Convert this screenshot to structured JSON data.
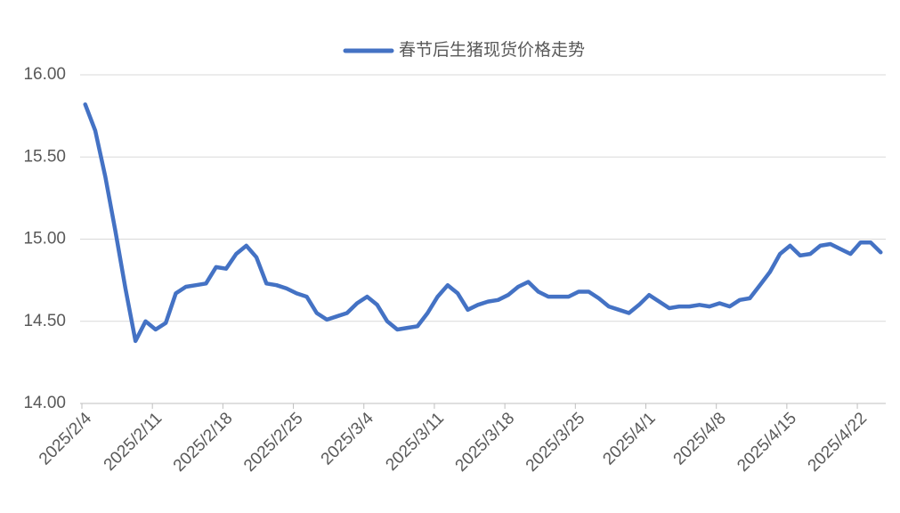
{
  "chart_data": {
    "type": "line",
    "legend": "春节后生猪现货价格走势",
    "series": [
      {
        "name": "春节后生猪现货价格走势",
        "color": "#4472c4",
        "values": [
          15.82,
          15.66,
          15.38,
          15.05,
          14.7,
          14.38,
          14.5,
          14.45,
          14.49,
          14.67,
          14.71,
          14.72,
          14.73,
          14.83,
          14.82,
          14.91,
          14.96,
          14.89,
          14.73,
          14.72,
          14.7,
          14.67,
          14.65,
          14.55,
          14.51,
          14.53,
          14.55,
          14.61,
          14.65,
          14.6,
          14.5,
          14.45,
          14.46,
          14.47,
          14.55,
          14.65,
          14.72,
          14.67,
          14.57,
          14.6,
          14.62,
          14.63,
          14.66,
          14.71,
          14.74,
          14.68,
          14.65,
          14.65,
          14.65,
          14.68,
          14.68,
          14.64,
          14.59,
          14.57,
          14.55,
          14.6,
          14.66,
          14.62,
          14.58,
          14.59,
          14.59,
          14.6,
          14.59,
          14.61,
          14.59,
          14.63,
          14.64,
          14.72,
          14.8,
          14.91,
          14.96,
          14.9,
          14.91,
          14.96,
          14.97,
          14.94,
          14.91,
          14.98,
          14.98,
          14.92
        ]
      }
    ],
    "categories": [
      "2025/2/4",
      null,
      null,
      null,
      null,
      null,
      null,
      "2025/2/11",
      null,
      null,
      null,
      null,
      null,
      null,
      "2025/2/18",
      null,
      null,
      null,
      null,
      null,
      null,
      "2025/2/25",
      null,
      null,
      null,
      null,
      null,
      null,
      "2025/3/4",
      null,
      null,
      null,
      null,
      null,
      null,
      "2025/3/11",
      null,
      null,
      null,
      null,
      null,
      null,
      "2025/3/18",
      null,
      null,
      null,
      null,
      null,
      null,
      "2025/3/25",
      null,
      null,
      null,
      null,
      null,
      null,
      "2025/4/1",
      null,
      null,
      null,
      null,
      null,
      null,
      "2025/4/8",
      null,
      null,
      null,
      null,
      null,
      null,
      "2025/4/15",
      null,
      null,
      null,
      null,
      null,
      null,
      "2025/4/22",
      null,
      null
    ],
    "ylim": [
      14,
      16
    ],
    "yticks": [
      {
        "value": 14,
        "label": "14.00"
      },
      {
        "value": 14.5,
        "label": "14.50"
      },
      {
        "value": 15,
        "label": "15.00"
      },
      {
        "value": 15.5,
        "label": "15.50"
      },
      {
        "value": 16,
        "label": "16.00"
      }
    ],
    "grid": true,
    "legend_position": "top"
  }
}
